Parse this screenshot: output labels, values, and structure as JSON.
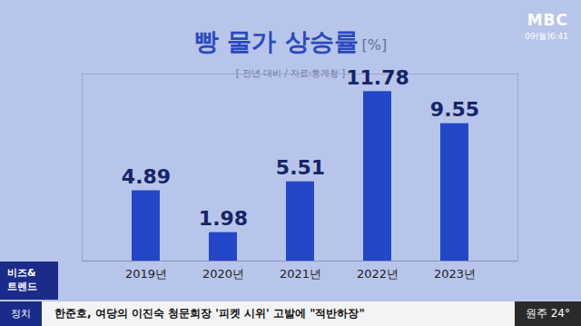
{
  "chart_data": {
    "type": "bar",
    "title": "빵 물가 상승률",
    "title_unit": "[%]",
    "subtitle": "[ 전년 대비 / 자료:통계청 ]",
    "categories": [
      "2019년",
      "2020년",
      "2021년",
      "2022년",
      "2023년"
    ],
    "values": [
      4.89,
      1.98,
      5.51,
      11.78,
      9.55
    ],
    "color": "#2446c8",
    "ylim": [
      0,
      13
    ],
    "data_labels": true,
    "tick_labels": "x",
    "grid": false
  },
  "broadcast": {
    "logo": "MBC",
    "clock": "09(월)6:41",
    "corner": [
      "비즈&",
      "트렌드"
    ],
    "section": "정치",
    "headline": "한준호, 여당의 이진숙 청문회장 '피켓 시위' 고발에 \"적반하장\"",
    "weather": "원주 24°"
  }
}
